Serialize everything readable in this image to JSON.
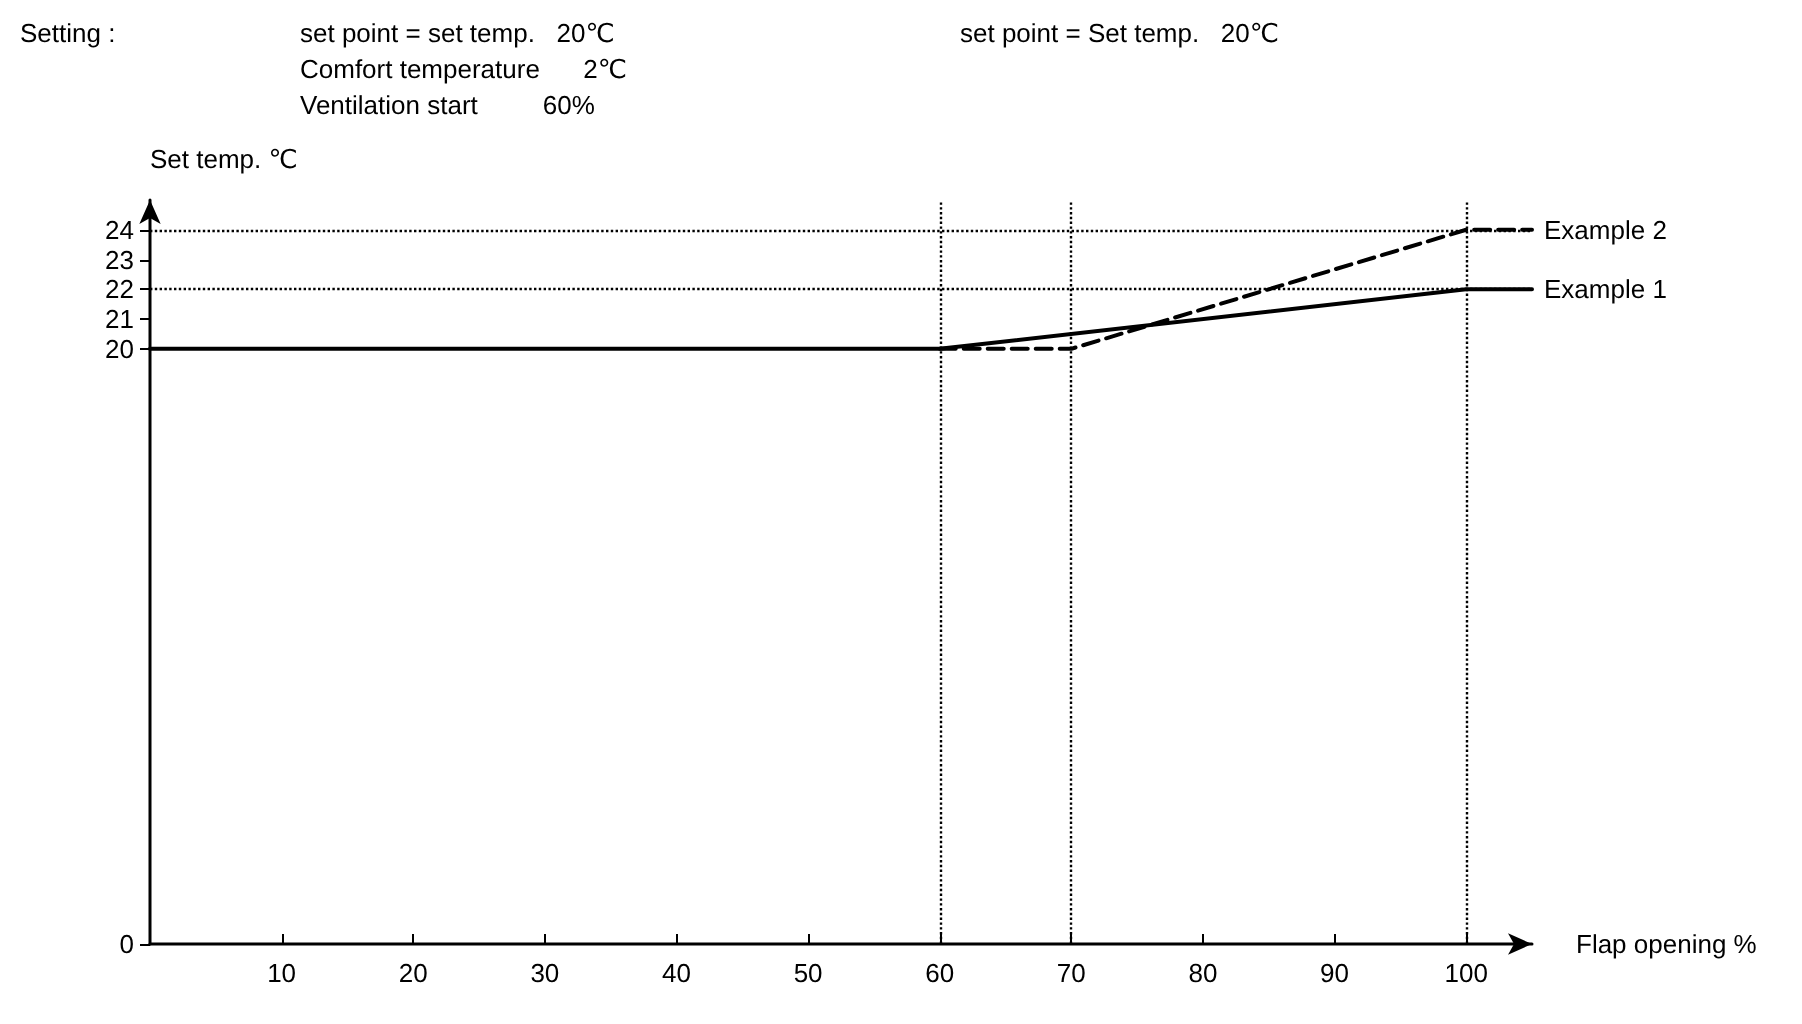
{
  "chart_data": {
    "type": "line",
    "xlabel": "Flap opening %",
    "ylabel": "Set temp. ℃",
    "annotations": [
      "Setting :",
      "set point = set temp.   20℃",
      "Comfort temperature      2℃",
      "Ventilation start         60%",
      "set point = Set temp.   20℃"
    ],
    "series": [
      {
        "name": "Example 1",
        "color": "#000000",
        "line_style": "solid",
        "x": [
          0,
          60,
          100,
          105
        ],
        "values": [
          20,
          20,
          22,
          22
        ]
      },
      {
        "name": "Example 2",
        "color": "#000000",
        "line_style": "dashed",
        "x": [
          60,
          70,
          100,
          105
        ],
        "values": [
          20,
          20,
          24,
          24
        ]
      }
    ],
    "xlim": [
      0,
      105
    ],
    "xticks": [
      10,
      20,
      30,
      40,
      50,
      60,
      70,
      80,
      90,
      100
    ],
    "ylim": [
      0,
      25
    ],
    "yticks": [
      0,
      20,
      21,
      22,
      23,
      24
    ],
    "ref_lines": [
      {
        "axis": "y",
        "value": 24,
        "color": "#000000",
        "line_style": "dotted"
      },
      {
        "axis": "y",
        "value": 22,
        "color": "#000000",
        "line_style": "dotted"
      },
      {
        "axis": "x",
        "value": 60,
        "color": "#000000",
        "line_style": "dotted"
      },
      {
        "axis": "x",
        "value": 70,
        "color": "#000000",
        "line_style": "dotted"
      },
      {
        "axis": "x",
        "value": 100,
        "color": "#000000",
        "line_style": "dotted"
      }
    ],
    "grid": false,
    "legend": false,
    "marker": "none"
  }
}
